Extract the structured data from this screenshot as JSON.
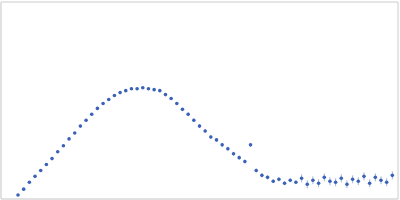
{
  "chart_data": {
    "type": "scatter",
    "color": "#3a62b8",
    "marker": "circle",
    "grid": true,
    "tick_labels": false,
    "xlim": [
      0,
      3.5
    ],
    "xticks": [
      1
    ],
    "ylim": [
      0,
      2
    ],
    "yticks": [
      1
    ],
    "x": [
      0.15,
      0.2,
      0.25,
      0.3,
      0.35,
      0.4,
      0.45,
      0.5,
      0.55,
      0.6,
      0.65,
      0.7,
      0.75,
      0.8,
      0.85,
      0.9,
      0.95,
      1.0,
      1.05,
      1.1,
      1.15,
      1.2,
      1.25,
      1.3,
      1.35,
      1.4,
      1.45,
      1.5,
      1.55,
      1.6,
      1.65,
      1.7,
      1.75,
      1.8,
      1.85,
      1.9,
      1.95,
      2.0,
      2.05,
      2.1,
      2.15,
      2.2,
      2.25,
      2.3,
      2.35,
      2.4,
      2.45,
      2.5,
      2.55,
      2.6,
      2.65,
      2.7,
      2.75,
      2.8,
      2.85,
      2.9,
      2.95,
      3.0,
      3.05,
      3.1,
      3.15,
      3.2,
      3.25,
      3.3,
      3.35,
      3.4,
      3.45
    ],
    "values": [
      0.04,
      0.1,
      0.17,
      0.23,
      0.29,
      0.35,
      0.41,
      0.48,
      0.54,
      0.61,
      0.67,
      0.74,
      0.8,
      0.86,
      0.92,
      0.97,
      1.01,
      1.05,
      1.08,
      1.1,
      1.12,
      1.12,
      1.13,
      1.12,
      1.11,
      1.1,
      1.06,
      1.02,
      0.97,
      0.91,
      0.86,
      0.8,
      0.74,
      0.69,
      0.63,
      0.6,
      0.55,
      0.51,
      0.46,
      0.42,
      0.38,
      0.55,
      0.29,
      0.24,
      0.22,
      0.18,
      0.2,
      0.16,
      0.19,
      0.17,
      0.21,
      0.15,
      0.19,
      0.16,
      0.22,
      0.18,
      0.17,
      0.21,
      0.15,
      0.2,
      0.18,
      0.23,
      0.16,
      0.22,
      0.19,
      0.17,
      0.24
    ],
    "errors": [
      0.01,
      0.01,
      0.01,
      0.01,
      0.01,
      0.01,
      0.01,
      0.01,
      0.01,
      0.01,
      0.01,
      0.01,
      0.01,
      0.01,
      0.01,
      0.01,
      0.01,
      0.01,
      0.01,
      0.01,
      0.01,
      0.01,
      0.01,
      0.01,
      0.01,
      0.01,
      0.01,
      0.01,
      0.01,
      0.01,
      0.02,
      0.02,
      0.02,
      0.02,
      0.02,
      0.02,
      0.02,
      0.02,
      0.02,
      0.02,
      0.02,
      0.02,
      0.02,
      0.02,
      0.02,
      0.02,
      0.02,
      0.02,
      0.02,
      0.02,
      0.04,
      0.04,
      0.04,
      0.04,
      0.04,
      0.04,
      0.04,
      0.04,
      0.04,
      0.04,
      0.04,
      0.04,
      0.04,
      0.04,
      0.04,
      0.04,
      0.04
    ]
  }
}
